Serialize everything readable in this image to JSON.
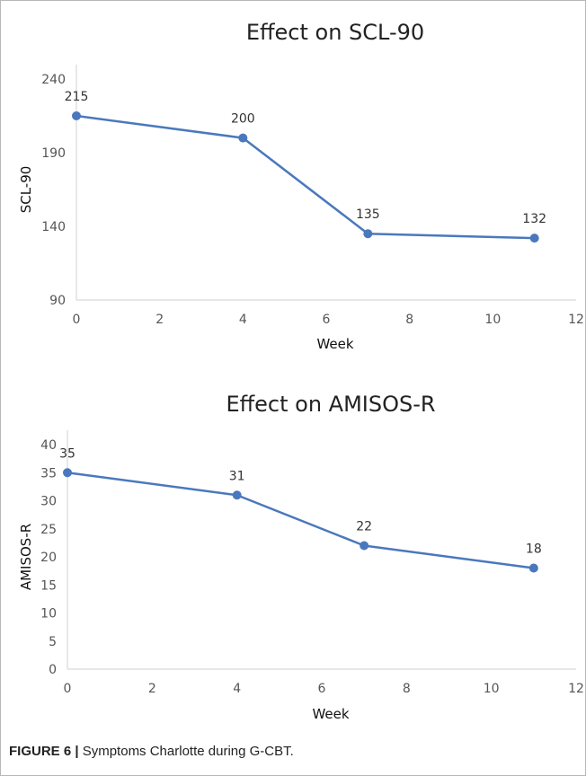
{
  "caption": {
    "figure_label": "FIGURE 6 |",
    "text": " Symptoms Charlotte during G-CBT."
  },
  "chart_data": [
    {
      "type": "line",
      "title": "Effect on SCL-90",
      "xlabel": "Week",
      "ylabel": "SCL-90",
      "xlim": [
        0,
        12
      ],
      "ylim": [
        90,
        240
      ],
      "xticks": [
        0,
        2,
        4,
        6,
        8,
        10,
        12
      ],
      "yticks": [
        90,
        140,
        190,
        240
      ],
      "grid": false,
      "series_color": "#4a78bd",
      "points": [
        {
          "x": 0,
          "y": 215
        },
        {
          "x": 4,
          "y": 200
        },
        {
          "x": 7,
          "y": 135
        },
        {
          "x": 11,
          "y": 132
        }
      ]
    },
    {
      "type": "line",
      "title": "Effect on AMISOS-R",
      "xlabel": "Week",
      "ylabel": "AMISOS-R",
      "xlim": [
        0,
        12
      ],
      "ylim": [
        0,
        40
      ],
      "xticks": [
        0,
        2,
        4,
        6,
        8,
        10,
        12
      ],
      "yticks": [
        0,
        5,
        10,
        15,
        20,
        25,
        30,
        35,
        40
      ],
      "grid": false,
      "series_color": "#4a78bd",
      "points": [
        {
          "x": 0,
          "y": 35
        },
        {
          "x": 4,
          "y": 31
        },
        {
          "x": 7,
          "y": 22
        },
        {
          "x": 11,
          "y": 18
        }
      ]
    }
  ]
}
